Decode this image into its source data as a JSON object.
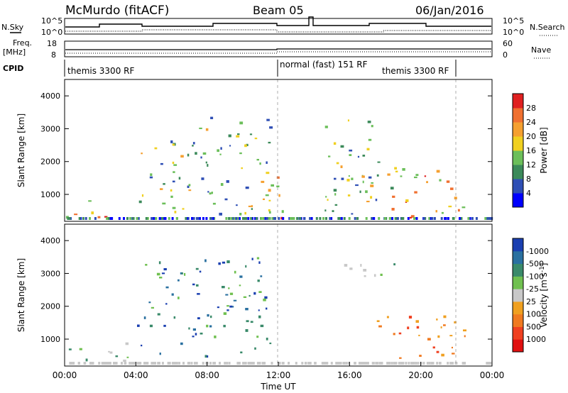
{
  "header": {
    "station": "McMurdo (fitACF)",
    "beam": "Beam 05",
    "date": "06/Jan/2016"
  },
  "aux_panels": {
    "nsky_label": "N.Sky",
    "nsky_ticks": [
      "10^5",
      "10^0"
    ],
    "nsearch_label": "N.Search",
    "nsearch_ticks": [
      "10^5",
      "10^0"
    ],
    "freq_label_1": "Freq.",
    "freq_label_2": "[MHz]",
    "freq_ticks": [
      "18",
      "8"
    ],
    "nave_label": "Nave",
    "nave_ticks": [
      "60",
      "0"
    ],
    "cpid_label": "CPID",
    "cpid_segments": [
      "themis 3300 RF",
      "normal (fast) 151 RF",
      "themis 3300 RF"
    ]
  },
  "chart_data": [
    {
      "type": "heatmap",
      "panel": "power",
      "ylabel": "Slant Range [km]",
      "yticks": [
        "1000",
        "2000",
        "3000",
        "4000"
      ],
      "ylim": [
        180,
        4500
      ],
      "colorbar_label": "Power [dB]",
      "colorbar_ticks": [
        "4",
        "8",
        "12",
        "16",
        "20",
        "24",
        "28"
      ],
      "colorbar_colors": [
        "#0000ff",
        "#2f4fb5",
        "#3c8a5a",
        "#6cbf5a",
        "#f0d020",
        "#f5a030",
        "#f07030",
        "#e02020"
      ],
      "regions": [
        {
          "t": [
            0.0,
            2.5
          ],
          "r": [
            300,
            900
          ],
          "level": "high"
        },
        {
          "t": [
            4.0,
            7.5
          ],
          "r": [
            500,
            2800
          ],
          "level": "mid"
        },
        {
          "t": [
            7.5,
            11.5
          ],
          "r": [
            400,
            3500
          ],
          "level": "mid"
        },
        {
          "t": [
            11.0,
            12.5
          ],
          "r": [
            300,
            1800
          ],
          "level": "high"
        },
        {
          "t": [
            14.5,
            18.5
          ],
          "r": [
            400,
            3300
          ],
          "level": "mid"
        },
        {
          "t": [
            18.0,
            22.5
          ],
          "r": [
            300,
            1900
          ],
          "level": "high"
        }
      ]
    },
    {
      "type": "heatmap",
      "panel": "velocity",
      "ylabel": "Slant Range [km]",
      "yticks": [
        "1000",
        "2000",
        "3000",
        "4000"
      ],
      "ylim": [
        180,
        4500
      ],
      "colorbar_label": "Velocity [m s",
      "colorbar_label_sup": "-1",
      "colorbar_label_end": "]",
      "colorbar_ticks": [
        "1000",
        "500",
        "100",
        "25",
        "-25",
        "-100",
        "-500",
        "-1000"
      ],
      "colorbar_colors": [
        "#1a3fb0",
        "#2a70a0",
        "#3a8a6a",
        "#70c050",
        "#c8c8c8",
        "#f0a020",
        "#f07a20",
        "#f04020",
        "#e01010"
      ],
      "xlabel": "Time UT",
      "xticks": [
        "00:00",
        "04:00",
        "08:00",
        "12:00",
        "16:00",
        "20:00",
        "00:00"
      ],
      "xlim": [
        0,
        24
      ],
      "regions": [
        {
          "t": [
            0.0,
            3.5
          ],
          "r": [
            200,
            900
          ],
          "level": "neutral"
        },
        {
          "t": [
            4.0,
            11.5
          ],
          "r": [
            500,
            3500
          ],
          "level": "toward"
        },
        {
          "t": [
            15.0,
            18.5
          ],
          "r": [
            2800,
            3400
          ],
          "level": "neutral"
        },
        {
          "t": [
            17.5,
            22.5
          ],
          "r": [
            400,
            1800
          ],
          "level": "away"
        }
      ]
    }
  ]
}
